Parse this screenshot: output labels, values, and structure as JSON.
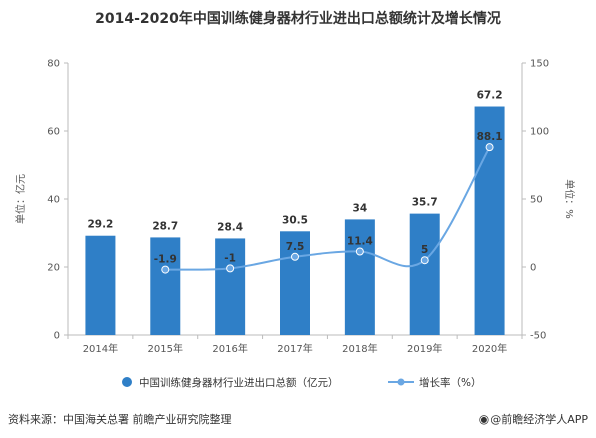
{
  "chart_data": {
    "type": "bar",
    "title": "2014-2020年中国训练健身器材行业进出口总额统计及增长情况",
    "categories": [
      "2014年",
      "2015年",
      "2016年",
      "2017年",
      "2018年",
      "2019年",
      "2020年"
    ],
    "series": [
      {
        "name": "中国训练健身器材行业进出口总额（亿元）",
        "type": "bar",
        "axis": "left",
        "values": [
          29.2,
          28.7,
          28.4,
          30.5,
          34,
          35.7,
          67.2
        ],
        "labels": [
          "29.2",
          "28.7",
          "28.4",
          "30.5",
          "34",
          "35.7",
          "67.2"
        ]
      },
      {
        "name": "增长率（%）",
        "type": "line",
        "axis": "right",
        "values": [
          null,
          -1.9,
          -1,
          7.5,
          11.4,
          5,
          88.1
        ],
        "labels": [
          "",
          "-1.9",
          "-1",
          "7.5",
          "11.4",
          "5",
          "88.1"
        ]
      }
    ],
    "y_left": {
      "label": "单位：亿元",
      "min": 0,
      "max": 80,
      "ticks": [
        0,
        20,
        40,
        60,
        80
      ]
    },
    "y_right": {
      "label": "单位：%",
      "min": -50,
      "max": 150,
      "ticks": [
        -50,
        0,
        50,
        100,
        150
      ]
    },
    "grid": false,
    "legend_position": "bottom",
    "colors": {
      "bar": "#2f7fc7",
      "line": "#6aa7e3",
      "axis": "#bbbbbb"
    }
  },
  "footer": {
    "source": "资料来源：中国海关总署 前瞻产业研究院整理",
    "brand": "@前瞻经济学人APP"
  }
}
